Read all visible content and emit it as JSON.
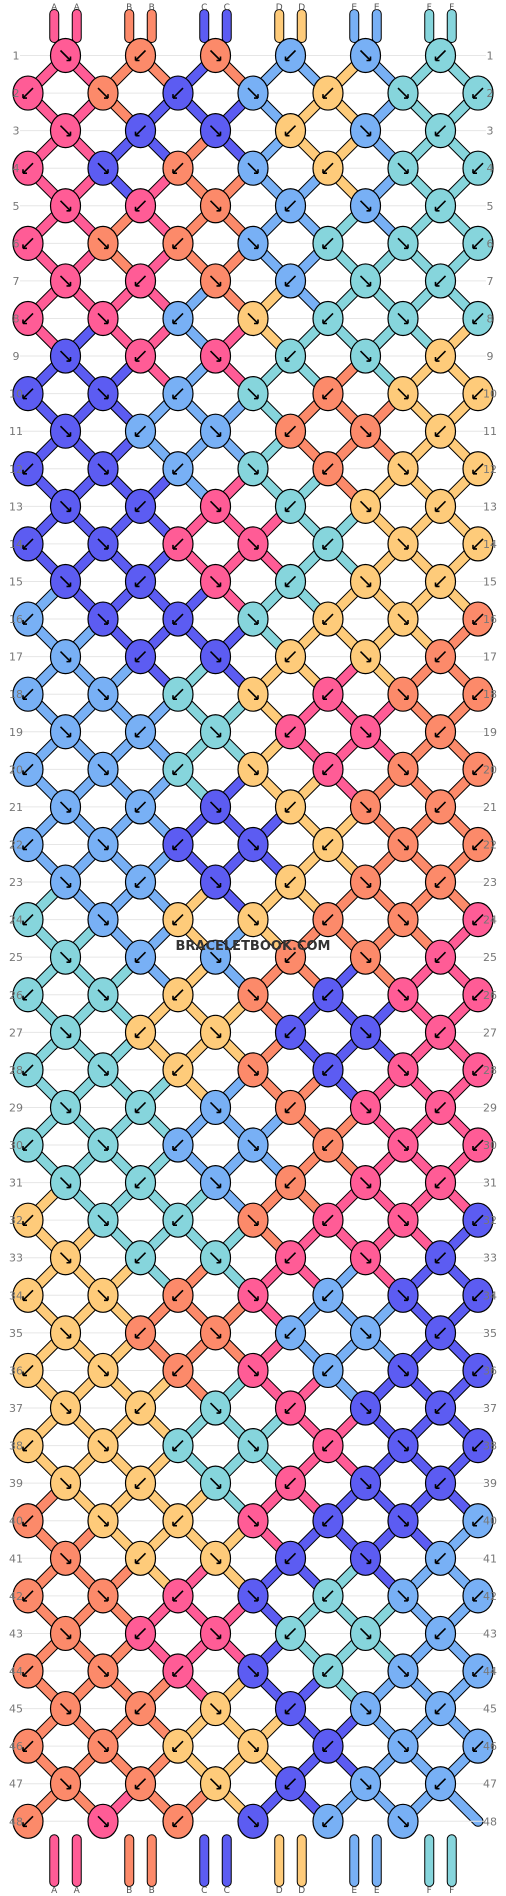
{
  "watermark": "BRACELETBOOK.COM",
  "strand_labels_top": [
    "A",
    "A",
    "B",
    "B",
    "C",
    "C",
    "D",
    "D",
    "E",
    "E",
    "F",
    "F"
  ],
  "strand_labels_bottom": [
    "A",
    "A",
    "B",
    "B",
    "C",
    "C",
    "D",
    "D",
    "E",
    "E",
    "F",
    "F"
  ],
  "row_count": 48,
  "colors": {
    "A": "#ff5c96",
    "B": "#fc8a6a",
    "C": "#5c5cf2",
    "D": "#fecb7a",
    "E": "#78b0f5",
    "F": "#86d5dc"
  },
  "knot_rows": [
    [
      "A",
      "B",
      "B",
      "E",
      "E",
      "F"
    ],
    [
      "A",
      "B",
      "C",
      "E",
      "D",
      "F",
      "F"
    ],
    [
      "A",
      "C",
      "C",
      "D",
      "E",
      "F"
    ],
    [
      "A",
      "C",
      "B",
      "E",
      "D",
      "F",
      "F"
    ],
    [
      "A",
      "A",
      "B",
      "E",
      "E",
      "F"
    ],
    [
      "A",
      "B",
      "B",
      "E",
      "F",
      "F",
      "F"
    ],
    [
      "A",
      "A",
      "B",
      "E",
      "F",
      "F"
    ],
    [
      "A",
      "A",
      "E",
      "D",
      "F",
      "F",
      "F"
    ],
    [
      "C",
      "A",
      "A",
      "F",
      "F",
      "D"
    ],
    [
      "C",
      "C",
      "E",
      "F",
      "B",
      "D",
      "D"
    ],
    [
      "C",
      "E",
      "E",
      "B",
      "B",
      "D"
    ],
    [
      "C",
      "C",
      "E",
      "F",
      "B",
      "D",
      "D"
    ],
    [
      "C",
      "C",
      "A",
      "F",
      "D",
      "D"
    ],
    [
      "C",
      "C",
      "A",
      "A",
      "F",
      "D",
      "D"
    ],
    [
      "C",
      "C",
      "A",
      "F",
      "D",
      "D"
    ],
    [
      "E",
      "C",
      "C",
      "F",
      "D",
      "D",
      "B"
    ],
    [
      "E",
      "C",
      "C",
      "D",
      "D",
      "B"
    ],
    [
      "E",
      "E",
      "F",
      "D",
      "A",
      "B",
      "B"
    ],
    [
      "E",
      "E",
      "F",
      "A",
      "A",
      "B"
    ],
    [
      "E",
      "E",
      "F",
      "D",
      "A",
      "B",
      "B"
    ],
    [
      "E",
      "E",
      "C",
      "D",
      "B",
      "B"
    ],
    [
      "E",
      "E",
      "C",
      "C",
      "D",
      "B",
      "B"
    ],
    [
      "E",
      "E",
      "C",
      "D",
      "B",
      "B"
    ],
    [
      "F",
      "E",
      "D",
      "D",
      "B",
      "B",
      "A"
    ],
    [
      "F",
      "E",
      "E",
      "B",
      "B",
      "A"
    ],
    [
      "F",
      "F",
      "D",
      "B",
      "C",
      "A",
      "A"
    ],
    [
      "F",
      "D",
      "D",
      "C",
      "C",
      "A"
    ],
    [
      "F",
      "F",
      "D",
      "B",
      "C",
      "A",
      "A"
    ],
    [
      "F",
      "F",
      "E",
      "B",
      "A",
      "A"
    ],
    [
      "F",
      "F",
      "E",
      "E",
      "B",
      "A",
      "A"
    ],
    [
      "F",
      "F",
      "E",
      "B",
      "A",
      "A"
    ],
    [
      "D",
      "F",
      "F",
      "B",
      "A",
      "A",
      "C"
    ],
    [
      "D",
      "F",
      "F",
      "A",
      "A",
      "C"
    ],
    [
      "D",
      "D",
      "B",
      "A",
      "E",
      "C",
      "C"
    ],
    [
      "D",
      "B",
      "B",
      "E",
      "E",
      "C"
    ],
    [
      "D",
      "D",
      "B",
      "A",
      "E",
      "C",
      "C"
    ],
    [
      "D",
      "D",
      "F",
      "A",
      "C",
      "C"
    ],
    [
      "D",
      "D",
      "F",
      "F",
      "A",
      "C",
      "C"
    ],
    [
      "D",
      "D",
      "F",
      "A",
      "C",
      "C"
    ],
    [
      "B",
      "D",
      "D",
      "A",
      "C",
      "C",
      "E"
    ],
    [
      "B",
      "D",
      "D",
      "C",
      "C",
      "E"
    ],
    [
      "B",
      "B",
      "A",
      "C",
      "F",
      "E",
      "E"
    ],
    [
      "B",
      "A",
      "A",
      "F",
      "F",
      "E"
    ],
    [
      "B",
      "B",
      "A",
      "C",
      "F",
      "E",
      "E"
    ],
    [
      "B",
      "B",
      "D",
      "C",
      "E",
      "E"
    ],
    [
      "B",
      "B",
      "D",
      "D",
      "C",
      "E",
      "E"
    ],
    [
      "B",
      "B",
      "D",
      "C",
      "E",
      "E"
    ],
    [
      "B",
      "A",
      "B",
      "C",
      "E",
      "E"
    ]
  ]
}
